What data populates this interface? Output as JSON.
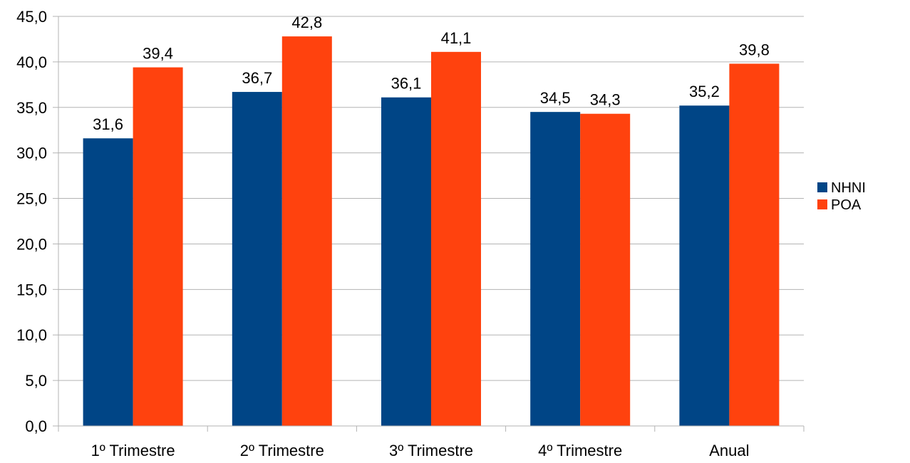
{
  "chart_data": {
    "type": "bar",
    "title": "",
    "xlabel": "",
    "ylabel": "",
    "categories": [
      "1º Trimestre",
      "2º Trimestre",
      "3º Trimestre",
      "4º Trimestre",
      "Anual"
    ],
    "series": [
      {
        "name": "NHNI",
        "color": "#004586",
        "values": [
          31.6,
          36.7,
          36.1,
          34.5,
          35.2
        ],
        "labels": [
          "31,6",
          "36,7",
          "36,1",
          "34,5",
          "35,2"
        ]
      },
      {
        "name": "POA",
        "color": "#ff420e",
        "values": [
          39.4,
          42.8,
          41.1,
          34.3,
          39.8
        ],
        "labels": [
          "39,4",
          "42,8",
          "41,1",
          "34,3",
          "39,8"
        ]
      }
    ],
    "ylim": [
      0,
      45
    ],
    "yticks": [
      0,
      5,
      10,
      15,
      20,
      25,
      30,
      35,
      40,
      45
    ],
    "ytick_labels": [
      "0,0",
      "5,0",
      "10,0",
      "15,0",
      "20,0",
      "25,0",
      "30,0",
      "35,0",
      "40,0",
      "45,0"
    ],
    "grid": true,
    "legend_position": "right"
  }
}
